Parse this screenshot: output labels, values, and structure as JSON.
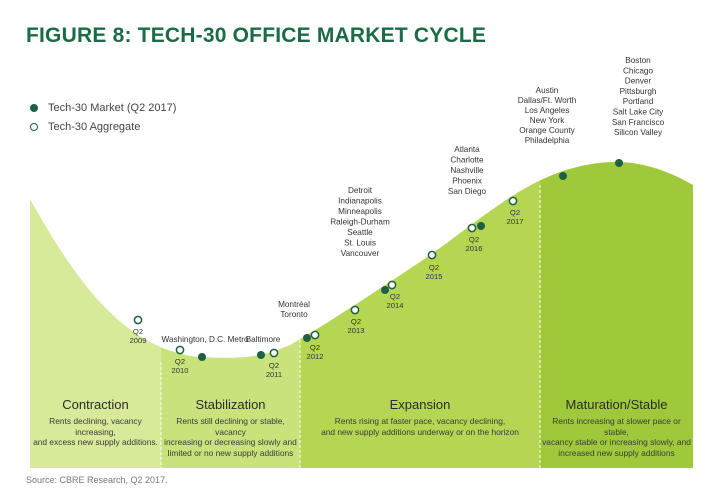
{
  "title": "FIGURE 8: TECH-30 OFFICE MARKET CYCLE",
  "legend": [
    {
      "label": "Tech-30 Market (Q2 2017)",
      "marker": "filled"
    },
    {
      "label": "Tech-30 Aggregate",
      "marker": "hollow"
    }
  ],
  "colors": {
    "title": "#1b6b45",
    "contraction_fill": "#d7ea9a",
    "stabilization_fill": "#c9e27b",
    "expansion_fill": "#b4d652",
    "maturation_fill": "#9fc93a",
    "marker": "#1f5f45"
  },
  "phases": [
    {
      "name": "Contraction",
      "description": [
        "Rents declining, vacancy increasing,",
        "and excess new supply additions."
      ]
    },
    {
      "name": "Stabilization",
      "description": [
        "Rents still declining or stable, vacancy",
        "increasing or decreasing slowly and",
        "limited or no new supply additions"
      ]
    },
    {
      "name": "Expansion",
      "description": [
        "Rents rising at faster pace, vacancy declining,",
        "and new supply additions underway or on the horizon"
      ]
    },
    {
      "name": "Maturation/Stable",
      "description": [
        "Rents increasing at slower pace or stable,",
        "vacancy stable or increasing slowly, and",
        "increased new supply additions"
      ]
    }
  ],
  "aggregate_points": [
    {
      "label": [
        "Q2",
        "2009"
      ]
    },
    {
      "label": [
        "Q2",
        "2010"
      ]
    },
    {
      "label": [
        "Q2",
        "2011"
      ]
    },
    {
      "label": [
        "Q2",
        "2012"
      ]
    },
    {
      "label": [
        "Q2",
        "2013"
      ]
    },
    {
      "label": [
        "Q2",
        "2014"
      ]
    },
    {
      "label": [
        "Q2",
        "2015"
      ]
    },
    {
      "label": [
        "Q2",
        "2016"
      ]
    },
    {
      "label": [
        "Q2",
        "2017"
      ]
    }
  ],
  "market_groups": [
    {
      "markets": [
        "Washington, D.C. Metro"
      ]
    },
    {
      "markets": [
        "Baltimore"
      ]
    },
    {
      "markets": [
        "Montréal",
        "Toronto"
      ]
    },
    {
      "markets": [
        "Detroit",
        "Indianapolis",
        "Minneapolis",
        "Raleigh-Durham",
        "Seattle",
        "St. Louis",
        "Vancouver"
      ]
    },
    {
      "markets": [
        "Atlanta",
        "Charlotte",
        "Nashville",
        "Phoenix",
        "San Diego"
      ]
    },
    {
      "markets": [
        "Austin",
        "Dallas/Ft. Worth",
        "Los Angeles",
        "New York",
        "Orange County",
        "Philadelphia"
      ]
    },
    {
      "markets": [
        "Boston",
        "Chicago",
        "Denver",
        "Pittsburgh",
        "Portland",
        "Salt Lake City",
        "San Francisco",
        "Silicon Valley"
      ]
    }
  ],
  "source": "Source: CBRE Research, Q2 2017."
}
